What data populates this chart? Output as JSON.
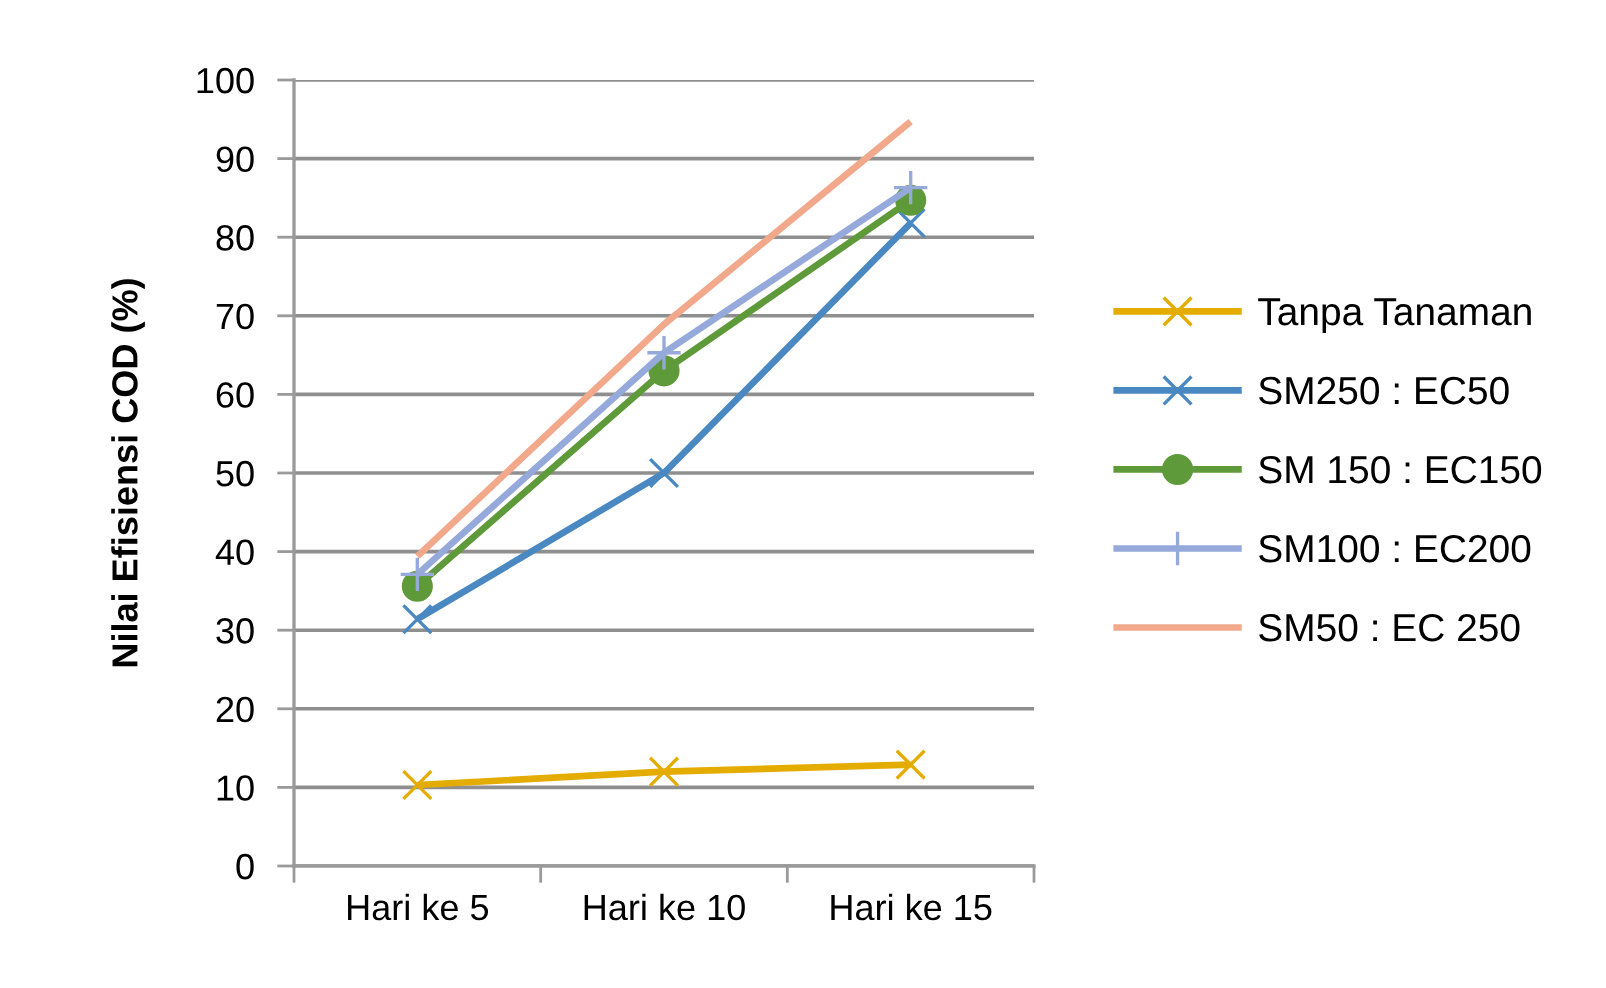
{
  "chart_data": {
    "type": "line",
    "ylabel": "Nilai Efisiensi COD (%)",
    "categories": [
      "Hari ke 5",
      "Hari ke 10",
      "Hari ke 15"
    ],
    "series": [
      {
        "name": "Tanpa Tanaman",
        "color": "#e5ac00",
        "marker": "cross",
        "values": [
          10.3,
          12.0,
          12.9
        ]
      },
      {
        "name": "SM250 : EC50",
        "color": "#4a88c2",
        "marker": "cross",
        "values": [
          31.4,
          50.0,
          81.8
        ]
      },
      {
        "name": "SM 150 : EC150",
        "color": "#5f9a3a",
        "marker": "circle",
        "values": [
          35.6,
          63.0,
          84.7
        ]
      },
      {
        "name": "SM100 : EC200",
        "color": "#95a9db",
        "marker": "plus",
        "values": [
          37.1,
          65.3,
          86.3
        ]
      },
      {
        "name": "SM50 : EC 250",
        "color": "#f2a88a",
        "marker": "none",
        "values": [
          39.4,
          68.9,
          94.7
        ]
      }
    ],
    "ylim": [
      0,
      100
    ],
    "yticks": [
      0,
      10,
      20,
      30,
      40,
      50,
      60,
      70,
      80,
      90,
      100
    ],
    "grid": "y",
    "legend": "right",
    "line_style": "solid"
  }
}
